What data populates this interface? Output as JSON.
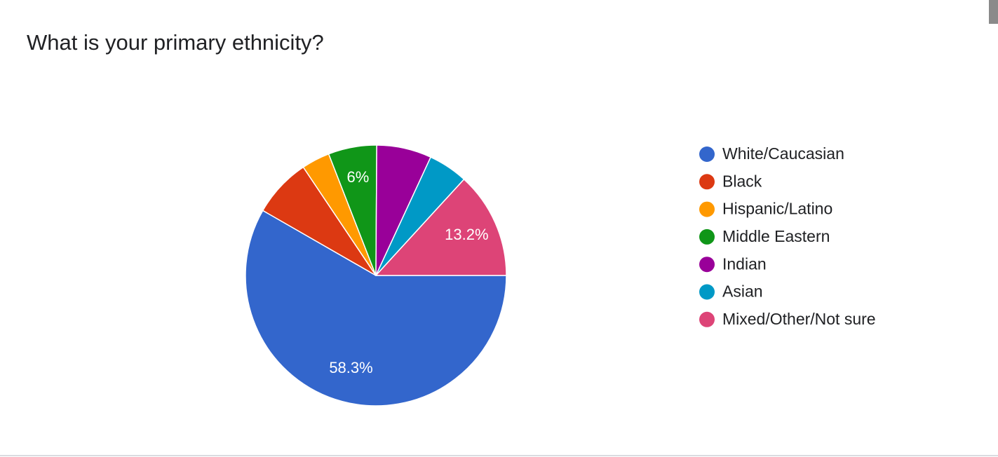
{
  "chart_data": {
    "type": "pie",
    "title": "What is your primary ethnicity?",
    "categories": [
      "White/Caucasian",
      "Black",
      "Hispanic/Latino",
      "Middle Eastern",
      "Indian",
      "Asian",
      "Mixed/Other/Not sure"
    ],
    "values": [
      58.3,
      7.3,
      3.5,
      6,
      6.8,
      4.9,
      13.2
    ],
    "value_labels": [
      "58.3%",
      null,
      null,
      "6%",
      null,
      null,
      "13.2%"
    ],
    "colors": [
      "#3366cc",
      "#dc3912",
      "#ff9900",
      "#109618",
      "#990099",
      "#0099c6",
      "#dd4477"
    ],
    "legend": "right"
  }
}
